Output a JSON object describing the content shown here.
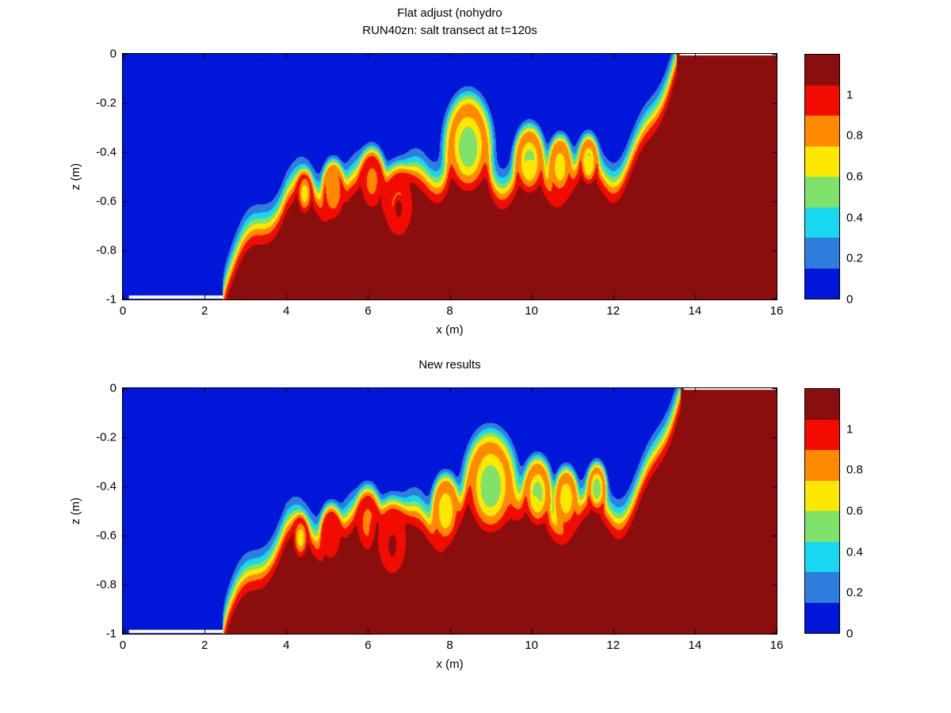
{
  "figure": {
    "background": "#ffffff"
  },
  "chart_data": [
    {
      "type": "heatmap",
      "title_lines": [
        "Flat adjust (nohydro",
        "RUN40zn: salt transect at t=120s"
      ],
      "xlabel": "x (m)",
      "ylabel": "z (m)",
      "xlim": [
        0,
        16
      ],
      "zlim": [
        -1,
        0
      ],
      "xticks": [
        0,
        2,
        4,
        6,
        8,
        10,
        12,
        14,
        16
      ],
      "xtick_labels": [
        "0",
        "2",
        "4",
        "6",
        "8",
        "10",
        "12",
        "14",
        "16"
      ],
      "yticks": [
        0,
        -0.2,
        -0.4,
        -0.6,
        -0.8,
        -1
      ],
      "ytick_labels": [
        "0",
        "-0.2",
        "-0.4",
        "-0.6",
        "-0.8",
        "-1"
      ],
      "colormap": {
        "levels": [
          0,
          0.15,
          0.3,
          0.45,
          0.6,
          0.75,
          0.9,
          1.05,
          1.2
        ],
        "colors": [
          "#0016d9",
          "#2e7fdd",
          "#17d8f0",
          "#7fe26a",
          "#ffe800",
          "#ff8a00",
          "#f20c00",
          "#8b0e0e"
        ]
      },
      "colorbar_ticks": [
        {
          "value": 1,
          "label": "1"
        },
        {
          "value": 0.8,
          "label": "0.8"
        },
        {
          "value": 0.6,
          "label": "0.6"
        },
        {
          "value": 0.4,
          "label": "0.4"
        },
        {
          "value": 0.2,
          "label": "0.2"
        },
        {
          "value": 0,
          "label": "0"
        }
      ],
      "field": {
        "smax": 1.17,
        "thickness": 0.04,
        "interface": {
          "toe_x": 2.45,
          "rise_end_x": 4.0,
          "base_z": -0.56,
          "tilt": 0.012,
          "wave_amp": 0.06,
          "wave_len": 1.4,
          "wave_phase": 0.0,
          "crest_x": 8.35,
          "crest_amp": 0.16,
          "crest_width": 0.55,
          "head_start_x": 11.9,
          "head_x": 13.55
        },
        "billows": [
          {
            "x": 4.45,
            "z": -0.57,
            "rx": 0.2,
            "rz": 0.09,
            "core": 0.72
          },
          {
            "x": 5.15,
            "z": -0.56,
            "rx": 0.28,
            "rz": 0.12,
            "core": 0.78
          },
          {
            "x": 6.1,
            "z": -0.52,
            "rx": 0.32,
            "rz": 0.13,
            "core": 0.88
          },
          {
            "x": 6.75,
            "z": -0.62,
            "rx": 0.44,
            "rz": 0.16,
            "core": 0.9
          },
          {
            "x": 6.75,
            "z": -0.63,
            "rx": 0.08,
            "rz": 0.035,
            "core": 1.12
          },
          {
            "x": 8.45,
            "z": -0.38,
            "rx": 0.55,
            "rz": 0.2,
            "core": 0.55
          },
          {
            "x": 9.95,
            "z": -0.44,
            "rx": 0.36,
            "rz": 0.14,
            "core": 0.6
          },
          {
            "x": 10.7,
            "z": -0.46,
            "rx": 0.28,
            "rz": 0.12,
            "core": 0.68
          },
          {
            "x": 11.4,
            "z": -0.44,
            "rx": 0.23,
            "rz": 0.1,
            "core": 0.6
          }
        ],
        "bed_gap": {
          "x0": 0.15,
          "x1": 2.45
        }
      }
    },
    {
      "type": "heatmap",
      "title_lines": [
        "",
        "New results"
      ],
      "xlabel": "x (m)",
      "ylabel": "z (m)",
      "xlim": [
        0,
        16
      ],
      "zlim": [
        -1,
        0
      ],
      "xticks": [
        0,
        2,
        4,
        6,
        8,
        10,
        12,
        14,
        16
      ],
      "xtick_labels": [
        "0",
        "2",
        "4",
        "6",
        "8",
        "10",
        "12",
        "14",
        "16"
      ],
      "yticks": [
        0,
        -0.2,
        -0.4,
        -0.6,
        -0.8,
        -1
      ],
      "ytick_labels": [
        "0",
        "-0.2",
        "-0.4",
        "-0.6",
        "-0.8",
        "-1"
      ],
      "colormap": {
        "levels": [
          0,
          0.15,
          0.3,
          0.45,
          0.6,
          0.75,
          0.9,
          1.05,
          1.2
        ],
        "colors": [
          "#0016d9",
          "#2e7fdd",
          "#17d8f0",
          "#7fe26a",
          "#ffe800",
          "#ff8a00",
          "#f20c00",
          "#8b0e0e"
        ]
      },
      "colorbar_ticks": [
        {
          "value": 1,
          "label": "1"
        },
        {
          "value": 0.8,
          "label": "0.8"
        },
        {
          "value": 0.6,
          "label": "0.6"
        },
        {
          "value": 0.4,
          "label": "0.4"
        },
        {
          "value": 0.2,
          "label": "0.2"
        },
        {
          "value": 0,
          "label": "0"
        }
      ],
      "field": {
        "smax": 1.17,
        "thickness": 0.04,
        "interface": {
          "toe_x": 2.45,
          "rise_end_x": 4.0,
          "base_z": -0.58,
          "tilt": 0.013,
          "wave_amp": 0.06,
          "wave_len": 1.45,
          "wave_phase": 0.6,
          "crest_x": 9.0,
          "crest_amp": 0.17,
          "crest_width": 0.6,
          "head_start_x": 12.0,
          "head_x": 13.65
        },
        "billows": [
          {
            "x": 4.35,
            "z": -0.61,
            "rx": 0.2,
            "rz": 0.09,
            "core": 0.72
          },
          {
            "x": 5.1,
            "z": -0.6,
            "rx": 0.28,
            "rz": 0.12,
            "core": 0.92
          },
          {
            "x": 6.0,
            "z": -0.55,
            "rx": 0.32,
            "rz": 0.14,
            "core": 0.88
          },
          {
            "x": 6.6,
            "z": -0.63,
            "rx": 0.45,
            "rz": 0.17,
            "core": 0.92
          },
          {
            "x": 6.6,
            "z": -0.64,
            "rx": 0.1,
            "rz": 0.045,
            "core": 1.12
          },
          {
            "x": 7.9,
            "z": -0.5,
            "rx": 0.33,
            "rz": 0.14,
            "core": 0.65
          },
          {
            "x": 9.0,
            "z": -0.4,
            "rx": 0.6,
            "rz": 0.21,
            "core": 0.55
          },
          {
            "x": 10.15,
            "z": -0.43,
            "rx": 0.34,
            "rz": 0.14,
            "core": 0.6
          },
          {
            "x": 10.85,
            "z": -0.45,
            "rx": 0.28,
            "rz": 0.12,
            "core": 0.65
          },
          {
            "x": 11.6,
            "z": -0.41,
            "rx": 0.23,
            "rz": 0.1,
            "core": 0.55
          }
        ],
        "bed_gap": {
          "x0": 0.15,
          "x1": 2.45
        }
      }
    }
  ]
}
